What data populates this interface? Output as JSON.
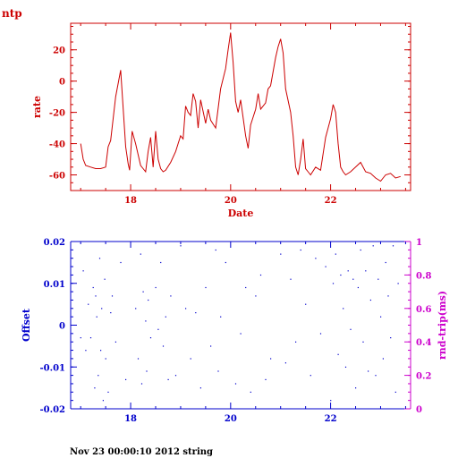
{
  "header": {
    "title": "ntp"
  },
  "footer": {
    "text": "Nov 23 00:00:10 2012 string"
  },
  "colors": {
    "rate": "#cc0000",
    "offset": "#0000cc",
    "roundtrip_axis": "#cc00cc"
  },
  "chart_data": [
    {
      "type": "line",
      "ylabel": "rate",
      "xlabel": "Date",
      "xlim": [
        16.8,
        23.6
      ],
      "ylim": [
        -70,
        37
      ],
      "x_ticks": [
        18,
        20,
        22
      ],
      "x_tick_labels": [
        "18",
        "20",
        "22"
      ],
      "y_ticks": [
        20,
        0,
        -20,
        -40,
        -60
      ],
      "y_tick_labels": [
        "20",
        "0",
        "-20",
        "-40",
        "-60"
      ],
      "series": [
        {
          "x": [
            17.0,
            17.05,
            17.1,
            17.2,
            17.3,
            17.4,
            17.5,
            17.55,
            17.6,
            17.7,
            17.8,
            17.9,
            17.95,
            17.98,
            18.03,
            18.1,
            18.2,
            18.25,
            18.3,
            18.35,
            18.4,
            18.45,
            18.5,
            18.55,
            18.6,
            18.65,
            18.7,
            18.8,
            18.9,
            18.95,
            19.0,
            19.05,
            19.1,
            19.15,
            19.2,
            19.25,
            19.3,
            19.35,
            19.4,
            19.5,
            19.55,
            19.6,
            19.7,
            19.8,
            19.9,
            19.95,
            20.0,
            20.05,
            20.1,
            20.15,
            20.2,
            20.3,
            20.35,
            20.4,
            20.5,
            20.55,
            20.6,
            20.7,
            20.75,
            20.8,
            20.9,
            20.95,
            21.0,
            21.05,
            21.1,
            21.2,
            21.25,
            21.3,
            21.35,
            21.4,
            21.45,
            21.5,
            21.55,
            21.6,
            21.7,
            21.8,
            21.9,
            21.95,
            22.0,
            22.05,
            22.1,
            22.15,
            22.2,
            22.25,
            22.3,
            22.4,
            22.5,
            22.6,
            22.7,
            22.8,
            22.9,
            23.0,
            23.1,
            23.2,
            23.3,
            23.4
          ],
          "y": [
            -40,
            -50,
            -54,
            -55,
            -56,
            -56,
            -55,
            -42,
            -38,
            -10,
            7,
            -42,
            -53,
            -57,
            -32,
            -40,
            -54,
            -56,
            -58,
            -45,
            -36,
            -55,
            -32,
            -50,
            -56,
            -58,
            -57,
            -52,
            -45,
            -40,
            -35,
            -37,
            -16,
            -20,
            -22,
            -8,
            -13,
            -30,
            -12,
            -27,
            -18,
            -25,
            -30,
            -5,
            8,
            20,
            31,
            12,
            -13,
            -20,
            -12,
            -35,
            -43,
            -28,
            -18,
            -8,
            -18,
            -14,
            -5,
            -3,
            15,
            22,
            27,
            18,
            -5,
            -20,
            -35,
            -55,
            -60,
            -50,
            -37,
            -56,
            -58,
            -60,
            -55,
            -57,
            -36,
            -30,
            -24,
            -15,
            -20,
            -40,
            -55,
            -58,
            -60,
            -58,
            -55,
            -52,
            -58,
            -59,
            -62,
            -64,
            -60,
            -59,
            -62,
            -61
          ]
        }
      ]
    },
    {
      "type": "scatter",
      "ylabel": "Offset",
      "y2label": "rnd-trip(ms)",
      "xlim": [
        16.8,
        23.6
      ],
      "ylim": [
        -0.02,
        0.02
      ],
      "y2lim": [
        0,
        1
      ],
      "x_ticks": [
        18,
        20,
        22
      ],
      "x_tick_labels": [
        "18",
        "20",
        "22"
      ],
      "y_ticks": [
        0.02,
        0.01,
        0,
        -0.01,
        -0.02
      ],
      "y_tick_labels": [
        "0.02",
        "0.01",
        "0",
        "-0.01",
        "-0.02"
      ],
      "y2_ticks": [
        1,
        0.8,
        0.6,
        0.4,
        0.2,
        0
      ],
      "y2_tick_labels": [
        "1",
        "0.8",
        "0.6",
        "0.4",
        "0.2",
        "0"
      ],
      "series": [
        {
          "x": [
            17.0,
            17.05,
            17.1,
            17.15,
            17.2,
            17.25,
            17.28,
            17.3,
            17.32,
            17.35,
            17.38,
            17.4,
            17.42,
            17.45,
            17.48,
            17.5,
            17.55,
            17.6,
            17.63,
            17.7,
            17.8,
            17.9,
            18.1,
            18.15,
            18.2,
            18.22,
            18.25,
            18.3,
            18.32,
            18.35,
            18.4,
            18.5,
            18.55,
            18.6,
            18.65,
            18.7,
            18.75,
            18.8,
            18.9,
            19.0,
            19.1,
            19.2,
            19.3,
            19.4,
            19.5,
            19.6,
            19.7,
            19.75,
            19.8,
            19.9,
            20.1,
            20.2,
            20.3,
            20.4,
            20.5,
            20.6,
            20.7,
            20.8,
            21.0,
            21.1,
            21.2,
            21.3,
            21.4,
            21.5,
            21.6,
            21.7,
            21.8,
            21.9,
            22.0,
            22.05,
            22.1,
            22.15,
            22.2,
            22.25,
            22.3,
            22.35,
            22.4,
            22.45,
            22.5,
            22.55,
            22.6,
            22.65,
            22.7,
            22.75,
            22.8,
            22.85,
            22.9,
            22.95,
            23.0,
            23.05,
            23.1,
            23.15,
            23.2,
            23.25,
            23.3,
            23.35
          ],
          "y": [
            -0.003,
            0.013,
            -0.006,
            0.005,
            -0.003,
            0.009,
            -0.015,
            0.007,
            0.002,
            -0.012,
            0.016,
            -0.006,
            0.004,
            -0.018,
            0.011,
            -0.008,
            -0.016,
            0.003,
            0.007,
            -0.004,
            0.015,
            -0.013,
            0.004,
            -0.008,
            0.017,
            -0.014,
            0.008,
            0.001,
            -0.011,
            0.006,
            -0.003,
            0.009,
            -0.001,
            0.015,
            -0.005,
            0.002,
            -0.013,
            0.007,
            -0.012,
            0.019,
            0.004,
            -0.008,
            0.003,
            -0.015,
            0.009,
            -0.005,
            0.018,
            -0.011,
            0.002,
            0.015,
            -0.014,
            -0.002,
            0.009,
            -0.016,
            0.007,
            0.012,
            -0.013,
            -0.008,
            0.017,
            -0.009,
            0.011,
            -0.004,
            0.018,
            0.005,
            -0.012,
            0.016,
            -0.002,
            0.014,
            -0.018,
            0.01,
            0.017,
            -0.007,
            0.012,
            0.004,
            -0.01,
            0.013,
            -0.001,
            0.011,
            -0.015,
            0.009,
            0.018,
            -0.004,
            0.013,
            -0.011,
            0.006,
            0.019,
            -0.012,
            0.011,
            0.002,
            -0.008,
            0.015,
            0.007,
            -0.003,
            0.019,
            -0.016,
            0.01
          ]
        }
      ]
    }
  ]
}
